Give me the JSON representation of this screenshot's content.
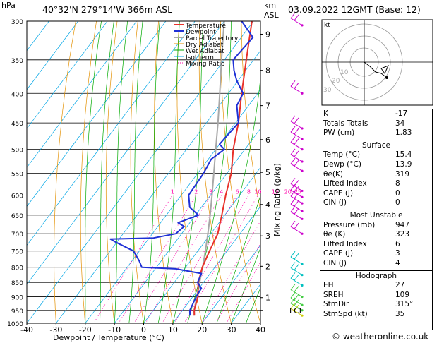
{
  "header": {
    "hpa": "hPa",
    "location": "40°32'N  279°14'W  366m  ASL",
    "km": "km",
    "asl": "ASL",
    "datetime": "03.09.2022  12GMT  (Base: 12)"
  },
  "legend": [
    "Temperature",
    "Dewpoint",
    "Parcel Trajectory",
    "Dry Adiabat",
    "Wet Adiabat",
    "Isotherm",
    "Mixing Ratio"
  ],
  "colors": {
    "temperature": "#e8312a",
    "dewpoint": "#1f31d6",
    "parcel": "#a8a8a8",
    "dry": "#e39000",
    "wet": "#00aa00",
    "isotherm": "#00a6e6",
    "mixing": "#ff00aa",
    "wind": "#cc00cc"
  },
  "chart_data": {
    "type": "skew-t",
    "title": "40°32'N  279°14'W  366m  ASL",
    "xlabel": "Dewpoint / Temperature (°C)",
    "ylabel": "hPa",
    "right_label": "Mixing Ratio (g/kg)",
    "xlim": [
      -40,
      40
    ],
    "ylim": [
      1000,
      300
    ],
    "x_ticks": [
      "-40",
      "-30",
      "-20",
      "-10",
      "0",
      "10",
      "20",
      "30",
      "40"
    ],
    "pressure_levels": [
      300,
      350,
      400,
      450,
      500,
      550,
      600,
      650,
      700,
      750,
      800,
      850,
      900,
      950,
      1000
    ],
    "km_ticks": [
      {
        "km": "1",
        "p": 903
      },
      {
        "km": "2",
        "p": 797
      },
      {
        "km": "3",
        "p": 706
      },
      {
        "km": "4",
        "p": 623
      },
      {
        "km": "5",
        "p": 548
      },
      {
        "km": "6",
        "p": 481
      },
      {
        "km": "7",
        "p": 420
      },
      {
        "km": "8",
        "p": 365
      },
      {
        "km": "9",
        "p": 316
      }
    ],
    "lcl": {
      "label": "LCL",
      "p": 950
    },
    "mixing_ratio_labels": [
      "1",
      "2",
      "3",
      "4",
      "6",
      "8",
      "10",
      "15",
      "20",
      "25"
    ],
    "temperature": [
      [
        970,
        15.4
      ],
      [
        950,
        14
      ],
      [
        900,
        11.8
      ],
      [
        850,
        8.2
      ],
      [
        800,
        5.7
      ],
      [
        750,
        4
      ],
      [
        700,
        2.4
      ],
      [
        650,
        -1
      ],
      [
        600,
        -4.8
      ],
      [
        550,
        -8.5
      ],
      [
        500,
        -14
      ],
      [
        450,
        -19
      ],
      [
        400,
        -25.5
      ],
      [
        350,
        -32.5
      ],
      [
        300,
        -40.5
      ]
    ],
    "dewpoint": [
      [
        970,
        13.9
      ],
      [
        950,
        12.5
      ],
      [
        900,
        11.2
      ],
      [
        870,
        10.8
      ],
      [
        850,
        8
      ],
      [
        820,
        7
      ],
      [
        805,
        -3
      ],
      [
        800,
        -15
      ],
      [
        780,
        -17.5
      ],
      [
        750,
        -22
      ],
      [
        725,
        -30
      ],
      [
        715,
        -33
      ],
      [
        712,
        -18.5
      ],
      [
        700,
        -12
      ],
      [
        680,
        -11
      ],
      [
        670,
        -14
      ],
      [
        650,
        -9
      ],
      [
        630,
        -14
      ],
      [
        600,
        -17.5
      ],
      [
        550,
        -18
      ],
      [
        520,
        -19
      ],
      [
        500,
        -17
      ],
      [
        490,
        -20
      ],
      [
        450,
        -19
      ],
      [
        420,
        -24
      ],
      [
        400,
        -25
      ],
      [
        380,
        -30.5
      ],
      [
        365,
        -34
      ],
      [
        350,
        -37
      ],
      [
        320,
        -36
      ],
      [
        300,
        -44
      ]
    ],
    "parcel": [
      [
        970,
        15.4
      ],
      [
        950,
        14
      ],
      [
        900,
        11.4
      ],
      [
        850,
        8.7
      ],
      [
        800,
        5.8
      ],
      [
        750,
        2.6
      ],
      [
        700,
        -1
      ],
      [
        650,
        -5
      ],
      [
        600,
        -9.5
      ],
      [
        550,
        -14.5
      ],
      [
        500,
        -20
      ],
      [
        450,
        -26
      ],
      [
        400,
        -33
      ],
      [
        350,
        -41
      ],
      [
        300,
        -50
      ]
    ]
  },
  "stats": {
    "k_label": "K",
    "k": "-17",
    "tt_label": "Totals Totals",
    "tt": "34",
    "pw_label": "PW (cm)",
    "pw": "1.83",
    "surface": {
      "title": "Surface",
      "temp_label": "Temp (°C)",
      "temp": "15.4",
      "dewp_label": "Dewp (°C)",
      "dewp": "13.9",
      "theta_label": "θe(K)",
      "theta": "319",
      "li_label": "Lifted Index",
      "li": "8",
      "cape_label": "CAPE (J)",
      "cape": "0",
      "cin_label": "CIN (J)",
      "cin": "0"
    },
    "unstable": {
      "title": "Most Unstable",
      "pres_label": "Pressure (mb)",
      "pres": "947",
      "theta_label": "θe (K)",
      "theta": "323",
      "li_label": "Lifted Index",
      "li": "6",
      "cape_label": "CAPE (J)",
      "cape": "3",
      "cin_label": "CIN (J)",
      "cin": "4"
    },
    "hodograph": {
      "title": "Hodograph",
      "eh_label": "EH",
      "eh": "27",
      "sreh_label": "SREH",
      "sreh": "109",
      "dir_label": "StmDir",
      "dir": "315°",
      "spd_label": "StmSpd (kt)",
      "spd": "35"
    }
  },
  "hodo": {
    "label": "kt",
    "rings": [
      "10",
      "20",
      "30"
    ]
  },
  "footer": "© weatheronline.co.uk"
}
